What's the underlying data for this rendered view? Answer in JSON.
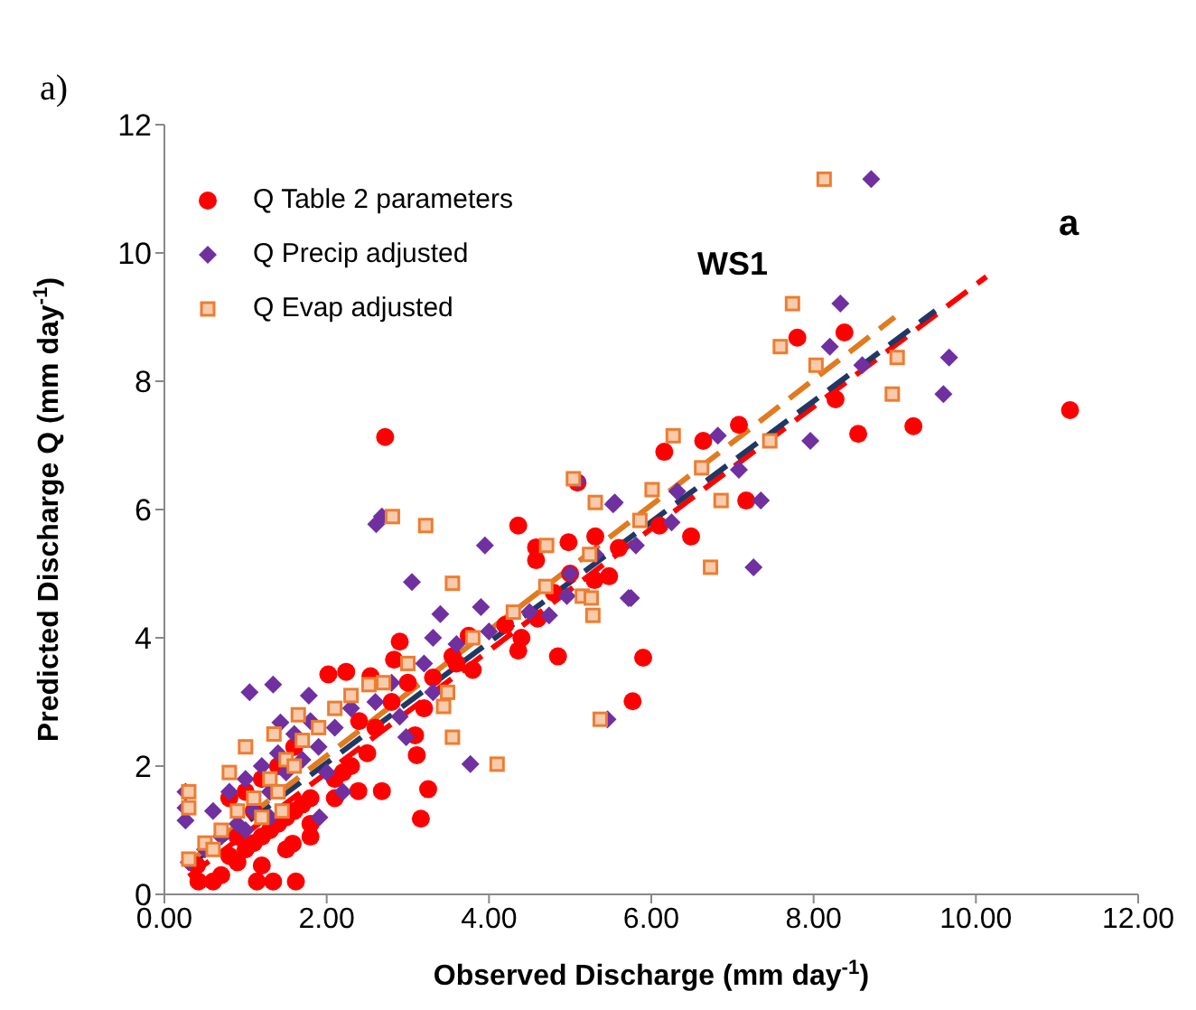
{
  "chart_data": {
    "type": "scatter",
    "xlabel": "Observed Discharge (mm day$^{-1}$)",
    "ylabel": "Predicted Discharge Q (mm day$^{-1}$)",
    "annotations": [
      "a)",
      "WS1",
      "a"
    ],
    "xlim": [
      0,
      12
    ],
    "xticks": [
      {
        "value": 0,
        "label": "0.00"
      },
      {
        "value": 2,
        "label": "2.00"
      },
      {
        "value": 4,
        "label": "4.00"
      },
      {
        "value": 6,
        "label": "6.00"
      },
      {
        "value": 8,
        "label": "8.00"
      },
      {
        "value": 10,
        "label": "10.00"
      },
      {
        "value": 12,
        "label": "12.00"
      }
    ],
    "ylim": [
      0,
      12
    ],
    "yticks": [
      0,
      2,
      4,
      6,
      8,
      10,
      12
    ],
    "grid": false,
    "legend": "top left",
    "series": [
      {
        "name": "Q Table 2 parameters",
        "type": "scatter",
        "marker": "circle",
        "color": "#ff0000",
        "x": [
          11.16,
          2.72,
          6.16,
          6.64,
          7.08,
          7.8,
          8.38,
          8.27,
          8.55,
          9.23,
          7.17,
          6.49,
          6.1,
          5.9,
          5.77,
          4.36,
          4.58,
          4.58,
          4.98,
          5.31,
          5.09,
          5.48,
          2.9,
          2.02,
          2.24,
          2.54,
          2.83,
          3.31,
          3.55,
          4.36,
          4.85,
          3.75,
          3.11,
          3.25,
          3.16,
          3.09,
          2.68,
          2.39,
          1.8,
          1.58,
          1.14,
          1.34,
          1.62,
          0.42,
          0.6,
          0.8,
          0.9,
          1.0,
          1.1,
          1.2,
          1.3,
          1.4,
          1.5,
          1.6,
          1.7,
          1.8,
          2.1,
          2.2,
          2.3,
          2.5,
          0.8,
          1.0,
          1.2,
          1.4,
          1.6,
          0.9,
          1.1,
          2.4,
          2.6,
          2.8,
          3.0,
          3.2,
          3.6,
          3.8,
          4.2,
          4.4,
          4.6,
          4.8,
          5.0,
          5.3,
          5.6,
          0.4,
          0.7,
          1.2,
          1.5,
          1.8,
          2.1
        ],
        "values": [
          7.55,
          7.13,
          6.9,
          7.07,
          7.32,
          8.68,
          8.76,
          7.72,
          7.18,
          7.3,
          6.14,
          5.58,
          5.75,
          3.69,
          3.01,
          5.75,
          5.41,
          5.21,
          5.49,
          5.58,
          6.42,
          4.96,
          3.94,
          3.43,
          3.47,
          3.4,
          3.66,
          3.38,
          3.71,
          3.8,
          3.71,
          4.03,
          2.17,
          1.64,
          1.18,
          2.48,
          1.61,
          1.61,
          0.9,
          0.79,
          0.2,
          0.2,
          0.2,
          0.2,
          0.2,
          0.6,
          0.5,
          0.7,
          0.8,
          0.9,
          1.0,
          1.1,
          1.2,
          1.3,
          1.4,
          1.5,
          1.8,
          1.9,
          2.0,
          2.2,
          1.5,
          1.6,
          1.8,
          2.0,
          2.3,
          0.9,
          1.3,
          2.7,
          2.6,
          3.0,
          3.3,
          2.9,
          3.6,
          3.5,
          4.2,
          4.0,
          4.3,
          4.7,
          5.0,
          4.9,
          5.4,
          0.45,
          0.3,
          0.45,
          0.7,
          1.1,
          1.5
        ]
      },
      {
        "name": "Q Precip adjusted",
        "type": "scatter",
        "marker": "diamond",
        "color": "#7030a0",
        "x": [
          8.71,
          8.33,
          8.2,
          8.6,
          9.67,
          9.6,
          6.82,
          7.96,
          7.08,
          7.35,
          7.26,
          5.55,
          5.72,
          6.32,
          6.25,
          5.81,
          2.61,
          2.68,
          3.05,
          3.4,
          3.95,
          5.53,
          3.9,
          5.09,
          5.31,
          4.96,
          1.05,
          1.34,
          1.43,
          1.78,
          0.26,
          0.26,
          0.26,
          3.77,
          5.46,
          3.31,
          4.74,
          5.75,
          2.9,
          2.98,
          3.31,
          1.91,
          0.3,
          0.5,
          0.7,
          0.9,
          1.1,
          1.3,
          1.5,
          1.7,
          1.9,
          2.1,
          2.3,
          0.6,
          0.8,
          1.0,
          1.2,
          1.4,
          1.6,
          1.8,
          2.6,
          2.8,
          3.2,
          3.6,
          4.0,
          4.5,
          5.0,
          1.0,
          1.3,
          2.0,
          2.2
        ],
        "values": [
          11.15,
          9.21,
          8.54,
          8.25,
          8.37,
          7.8,
          7.15,
          7.07,
          6.62,
          6.14,
          5.1,
          6.11,
          4.62,
          6.28,
          5.8,
          5.44,
          5.77,
          5.89,
          4.87,
          4.37,
          5.44,
          6.08,
          4.48,
          6.45,
          5.3,
          4.65,
          3.15,
          3.27,
          2.68,
          3.1,
          1.6,
          1.35,
          1.15,
          2.03,
          2.73,
          4.0,
          4.35,
          4.62,
          2.77,
          2.45,
          3.15,
          1.2,
          0.5,
          0.7,
          0.9,
          1.1,
          1.3,
          1.6,
          1.9,
          2.1,
          2.3,
          2.6,
          2.9,
          1.3,
          1.6,
          1.8,
          2.0,
          2.2,
          2.5,
          2.7,
          3.0,
          3.3,
          3.6,
          3.9,
          4.1,
          4.4,
          5.0,
          1.0,
          1.2,
          1.9,
          1.6
        ]
      },
      {
        "name": "Q Evap adjusted",
        "type": "scatter",
        "marker": "square",
        "color": "#ed7d31",
        "x": [
          8.13,
          7.74,
          7.59,
          8.03,
          9.03,
          8.97,
          6.27,
          6.01,
          5.86,
          6.86,
          6.73,
          6.62,
          7.46,
          2.81,
          3.22,
          3.55,
          4.71,
          5.04,
          5.31,
          5.24,
          5.15,
          5.26,
          4.1,
          3.55,
          5.37,
          3.44,
          3.49,
          5.28,
          2.52,
          0.3,
          0.5,
          0.7,
          0.9,
          1.1,
          1.3,
          1.5,
          1.7,
          1.9,
          2.1,
          2.3,
          1.4,
          1.2,
          1.6,
          0.8,
          1.0,
          1.35,
          1.65,
          1.45,
          0.6,
          2.7,
          3.0,
          3.8,
          4.3,
          4.7,
          0.3,
          0.3
        ],
        "values": [
          11.15,
          9.21,
          8.54,
          8.25,
          8.37,
          7.8,
          7.15,
          6.31,
          5.83,
          6.14,
          5.1,
          6.65,
          7.07,
          5.89,
          5.75,
          4.85,
          5.44,
          6.48,
          6.11,
          5.3,
          4.65,
          4.62,
          2.03,
          2.45,
          2.73,
          2.93,
          3.15,
          4.35,
          3.27,
          0.55,
          0.8,
          1.0,
          1.3,
          1.5,
          1.8,
          2.1,
          2.4,
          2.6,
          2.9,
          3.1,
          1.6,
          1.2,
          2.0,
          1.9,
          2.3,
          2.5,
          2.8,
          1.3,
          0.7,
          3.3,
          3.6,
          4.0,
          4.4,
          4.8,
          1.6,
          1.35
        ]
      },
      {
        "type": "line",
        "line_style": "dashed",
        "marker": "none",
        "color": "#ff0000",
        "x": [
          0.3,
          10.13
        ],
        "values": [
          0.28,
          9.63
        ]
      },
      {
        "type": "line",
        "line_style": "dashed",
        "marker": "none",
        "color": "#1f3864",
        "x": [
          0.3,
          9.5
        ],
        "values": [
          0.45,
          9.1
        ]
      },
      {
        "type": "line",
        "line_style": "dashed",
        "marker": "none",
        "color": "#e07b20",
        "x": [
          0.3,
          9.0
        ],
        "values": [
          0.5,
          9.0
        ]
      }
    ]
  }
}
